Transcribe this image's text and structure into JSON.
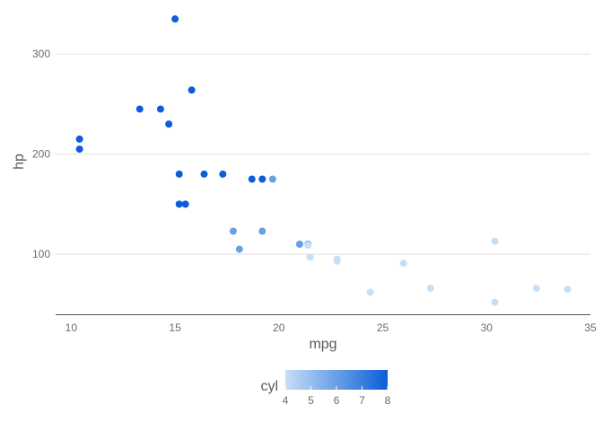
{
  "chart_data": {
    "type": "scatter",
    "xlabel": "mpg",
    "ylabel": "hp",
    "xlim": [
      9.25,
      35
    ],
    "ylim": [
      40,
      345
    ],
    "x_ticks": [
      10,
      15,
      20,
      25,
      30,
      35
    ],
    "y_ticks": [
      100,
      200,
      300
    ],
    "grid": "horizontal",
    "legend": {
      "title": "cyl",
      "type": "colorbar",
      "placement": "bottom",
      "range": [
        4,
        8
      ],
      "ticks": [
        4,
        5,
        6,
        7,
        8
      ],
      "low_color": "#c6dff7",
      "high_color": "#0b5ed7"
    },
    "points": [
      {
        "x": 21.0,
        "y": 110,
        "cyl": 6
      },
      {
        "x": 21.0,
        "y": 110,
        "cyl": 6
      },
      {
        "x": 22.8,
        "y": 93,
        "cyl": 4
      },
      {
        "x": 21.4,
        "y": 110,
        "cyl": 6
      },
      {
        "x": 18.7,
        "y": 175,
        "cyl": 8
      },
      {
        "x": 18.1,
        "y": 105,
        "cyl": 6
      },
      {
        "x": 14.3,
        "y": 245,
        "cyl": 8
      },
      {
        "x": 24.4,
        "y": 62,
        "cyl": 4
      },
      {
        "x": 22.8,
        "y": 95,
        "cyl": 4
      },
      {
        "x": 19.2,
        "y": 123,
        "cyl": 6
      },
      {
        "x": 17.8,
        "y": 123,
        "cyl": 6
      },
      {
        "x": 16.4,
        "y": 180,
        "cyl": 8
      },
      {
        "x": 17.3,
        "y": 180,
        "cyl": 8
      },
      {
        "x": 15.2,
        "y": 180,
        "cyl": 8
      },
      {
        "x": 10.4,
        "y": 205,
        "cyl": 8
      },
      {
        "x": 10.4,
        "y": 215,
        "cyl": 8
      },
      {
        "x": 14.7,
        "y": 230,
        "cyl": 8
      },
      {
        "x": 32.4,
        "y": 66,
        "cyl": 4
      },
      {
        "x": 30.4,
        "y": 52,
        "cyl": 4
      },
      {
        "x": 33.9,
        "y": 65,
        "cyl": 4
      },
      {
        "x": 21.5,
        "y": 97,
        "cyl": 4
      },
      {
        "x": 15.5,
        "y": 150,
        "cyl": 8
      },
      {
        "x": 15.2,
        "y": 150,
        "cyl": 8
      },
      {
        "x": 13.3,
        "y": 245,
        "cyl": 8
      },
      {
        "x": 19.2,
        "y": 175,
        "cyl": 8
      },
      {
        "x": 27.3,
        "y": 66,
        "cyl": 4
      },
      {
        "x": 26.0,
        "y": 91,
        "cyl": 4
      },
      {
        "x": 30.4,
        "y": 113,
        "cyl": 4
      },
      {
        "x": 15.8,
        "y": 264,
        "cyl": 8
      },
      {
        "x": 19.7,
        "y": 175,
        "cyl": 6
      },
      {
        "x": 15.0,
        "y": 335,
        "cyl": 8
      },
      {
        "x": 21.4,
        "y": 109,
        "cyl": 4
      }
    ]
  }
}
